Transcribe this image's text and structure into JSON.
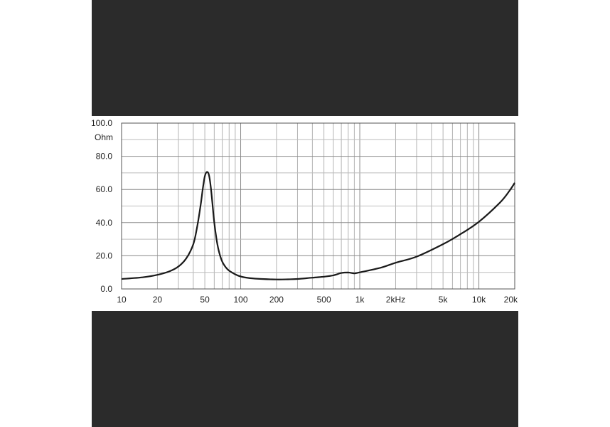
{
  "chart_data": {
    "type": "line",
    "title": "",
    "xlabel": "",
    "ylabel": "Ohm",
    "x_scale": "log",
    "xlim": [
      10,
      20000
    ],
    "ylim": [
      0,
      100
    ],
    "grid": true,
    "x_tick_labels": [
      {
        "value": 10,
        "label": "10"
      },
      {
        "value": 20,
        "label": "20"
      },
      {
        "value": 50,
        "label": "50"
      },
      {
        "value": 100,
        "label": "100"
      },
      {
        "value": 200,
        "label": "200"
      },
      {
        "value": 500,
        "label": "500"
      },
      {
        "value": 1000,
        "label": "1k"
      },
      {
        "value": 2000,
        "label": "2kHz"
      },
      {
        "value": 5000,
        "label": "5k"
      },
      {
        "value": 10000,
        "label": "10k"
      },
      {
        "value": 20000,
        "label": "20k"
      }
    ],
    "y_tick_labels": [
      {
        "value": 0,
        "label": "0.0"
      },
      {
        "value": 20,
        "label": "20.0"
      },
      {
        "value": 40,
        "label": "40.0"
      },
      {
        "value": 60,
        "label": "60.0"
      },
      {
        "value": 80,
        "label": "80.0"
      },
      {
        "value": 100,
        "label": "100.0"
      }
    ],
    "series": [
      {
        "color": "#1a1a1a",
        "x": [
          10,
          15,
          20,
          25,
          30,
          35,
          40,
          43,
          46,
          48,
          50,
          52,
          54,
          56,
          58,
          60,
          63,
          66,
          70,
          75,
          80,
          90,
          100,
          120,
          150,
          200,
          250,
          300,
          400,
          500,
          600,
          700,
          800,
          900,
          1000,
          1500,
          2000,
          3000,
          5000,
          7000,
          10000,
          15000,
          18000,
          20000
        ],
        "y": [
          6,
          7,
          8.5,
          10.5,
          13.5,
          18.5,
          27,
          37,
          50,
          60,
          68,
          70.5,
          69,
          62,
          51,
          40,
          29,
          22,
          16.5,
          13,
          11,
          8.8,
          7.5,
          6.5,
          6,
          5.7,
          5.8,
          6,
          6.8,
          7.4,
          8.2,
          9.6,
          9.9,
          9.4,
          10,
          12.8,
          15.8,
          19.5,
          27,
          33,
          40.5,
          52,
          59,
          64
        ]
      }
    ]
  }
}
